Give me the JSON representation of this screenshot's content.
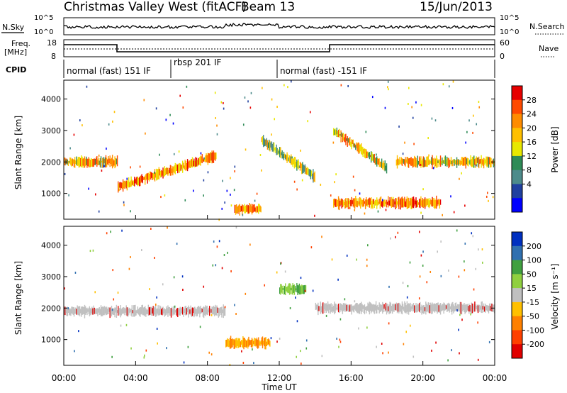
{
  "header": {
    "station": "Christmas Valley West (fitACF)",
    "beam": "Beam 13",
    "date": "15/Jun/2013"
  },
  "noise_panel": {
    "left_label": "N.Sky",
    "right_label": "N.Search",
    "left_ticks": [
      "10^5",
      "10^0"
    ],
    "right_ticks": [
      "10^5",
      "10^0"
    ]
  },
  "freq_panel": {
    "left_label_1": "Freq.",
    "left_label_2": "[MHz]",
    "right_label": "Nave",
    "left_ticks": [
      "18",
      "8"
    ],
    "right_ticks": [
      "60",
      "0"
    ]
  },
  "cpid": {
    "label": "CPID",
    "segments": [
      {
        "name": "normal (fast) 151 IF",
        "start_h": 0,
        "end_h": 6.0
      },
      {
        "name": "rbsp 201 IF",
        "start_h": 6.0,
        "end_h": 12.0
      },
      {
        "name": "normal (fast) -151 IF",
        "start_h": 12.0,
        "end_h": 24.0
      }
    ]
  },
  "time_axis": {
    "label": "Time UT",
    "ticks": [
      "00:00",
      "04:00",
      "08:00",
      "12:00",
      "16:00",
      "20:00",
      "00:00"
    ]
  },
  "chart_data": [
    {
      "type": "heatmap",
      "title": "Power",
      "ylabel": "Slant Range [km]",
      "xlabel": "Time UT",
      "xlim_hours": [
        0,
        24
      ],
      "ylim_km": [
        180,
        4600
      ],
      "y_ticks": [
        "1000",
        "2000",
        "3000",
        "4000"
      ],
      "colorbar": {
        "label": "Power [dB]",
        "ticks": [
          "28",
          "24",
          "20",
          "16",
          "12",
          "8",
          "4"
        ],
        "colors": [
          "#e60000",
          "#ff4a00",
          "#ff8c00",
          "#ffc000",
          "#e8e800",
          "#2e8b57",
          "#4d8b8b",
          "#2040a0",
          "#0000ff"
        ]
      },
      "features": [
        {
          "name": "band_2000km",
          "t_start": 0.0,
          "t_end": 3.0,
          "range_km": 2000,
          "power_db": 24
        },
        {
          "name": "rising_band",
          "t_start": 3.0,
          "t_end": 8.5,
          "range_start_km": 1200,
          "range_end_km": 2200,
          "power_db": 28
        },
        {
          "name": "near_range_echoes",
          "t_start": 9.5,
          "t_end": 11.0,
          "range_km": 500,
          "power_db": 28
        },
        {
          "name": "descending_band",
          "t_start": 11.0,
          "t_end": 14.0,
          "range_start_km": 2700,
          "range_end_km": 1500,
          "power_db": 20
        },
        {
          "name": "descending_band_2",
          "t_start": 15.0,
          "t_end": 18.0,
          "range_start_km": 3000,
          "range_end_km": 1800,
          "power_db": 24
        },
        {
          "name": "low_band",
          "t_start": 15.0,
          "t_end": 21.0,
          "range_km": 700,
          "power_db": 28
        },
        {
          "name": "sawtooth_band",
          "t_start": 18.5,
          "t_end": 24.0,
          "range_km": 2000,
          "power_db": 24
        }
      ]
    },
    {
      "type": "heatmap",
      "title": "Velocity",
      "ylabel": "Slant Range [km]",
      "xlabel": "Time UT",
      "xlim_hours": [
        0,
        24
      ],
      "ylim_km": [
        180,
        4600
      ],
      "y_ticks": [
        "1000",
        "2000",
        "3000",
        "4000"
      ],
      "colorbar": {
        "label": "Velocity [m s⁻¹]",
        "ticks": [
          "200",
          "100",
          "50",
          "15",
          "-15",
          "-50",
          "-100",
          "-200"
        ],
        "colors": [
          "#0030c0",
          "#3070b0",
          "#40a040",
          "#90d040",
          "#c0c0c0",
          "#ffc000",
          "#ff8000",
          "#ff4000",
          "#e00000"
        ]
      },
      "features": [
        {
          "name": "ground_scatter_band",
          "t_start": 0.0,
          "t_end": 9.0,
          "range_km": 1900,
          "velocity": 0
        },
        {
          "name": "orange_patch",
          "t_start": 9.0,
          "t_end": 11.5,
          "range_km": 900,
          "velocity": -80
        },
        {
          "name": "green_patch",
          "t_start": 12.0,
          "t_end": 13.5,
          "range_km": 2600,
          "velocity": 40
        },
        {
          "name": "ground_scatter_band_2",
          "t_start": 14.0,
          "t_end": 24.0,
          "range_km": 2000,
          "velocity": 0
        }
      ]
    }
  ]
}
